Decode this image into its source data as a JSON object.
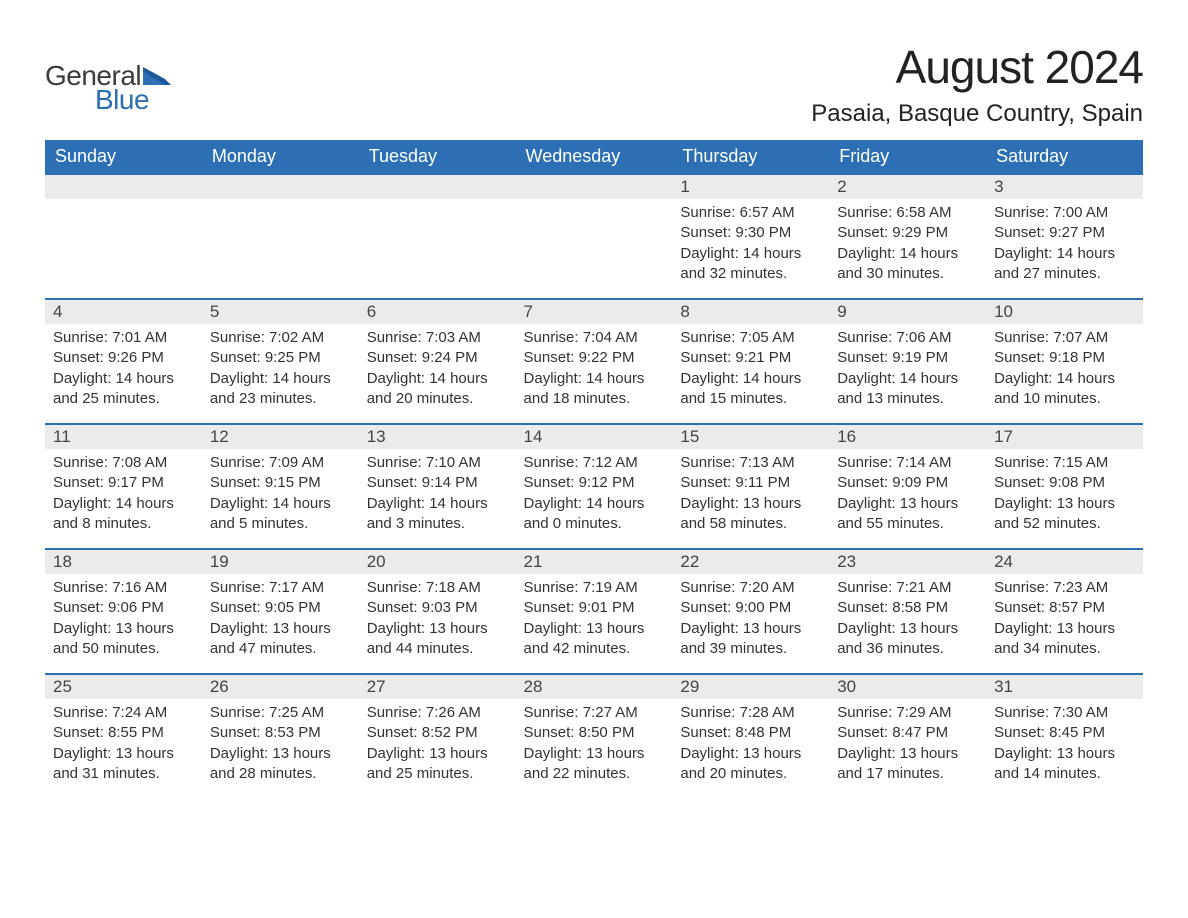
{
  "logo": {
    "general": "General",
    "blue": "Blue"
  },
  "title": "August 2024",
  "location": "Pasaia, Basque Country, Spain",
  "colors": {
    "header_bg": "#2d6fb5",
    "header_fg": "#ffffff",
    "accent": "#2d6fb5",
    "daynum_bg": "#ebebeb",
    "text": "#333333",
    "page_bg": "#ffffff"
  },
  "weekdays": [
    "Sunday",
    "Monday",
    "Tuesday",
    "Wednesday",
    "Thursday",
    "Friday",
    "Saturday"
  ],
  "weeks": [
    [
      null,
      null,
      null,
      null,
      {
        "n": "1",
        "sunrise": "6:57 AM",
        "sunset": "9:30 PM",
        "daylight": "14 hours and 32 minutes."
      },
      {
        "n": "2",
        "sunrise": "6:58 AM",
        "sunset": "9:29 PM",
        "daylight": "14 hours and 30 minutes."
      },
      {
        "n": "3",
        "sunrise": "7:00 AM",
        "sunset": "9:27 PM",
        "daylight": "14 hours and 27 minutes."
      }
    ],
    [
      {
        "n": "4",
        "sunrise": "7:01 AM",
        "sunset": "9:26 PM",
        "daylight": "14 hours and 25 minutes."
      },
      {
        "n": "5",
        "sunrise": "7:02 AM",
        "sunset": "9:25 PM",
        "daylight": "14 hours and 23 minutes."
      },
      {
        "n": "6",
        "sunrise": "7:03 AM",
        "sunset": "9:24 PM",
        "daylight": "14 hours and 20 minutes."
      },
      {
        "n": "7",
        "sunrise": "7:04 AM",
        "sunset": "9:22 PM",
        "daylight": "14 hours and 18 minutes."
      },
      {
        "n": "8",
        "sunrise": "7:05 AM",
        "sunset": "9:21 PM",
        "daylight": "14 hours and 15 minutes."
      },
      {
        "n": "9",
        "sunrise": "7:06 AM",
        "sunset": "9:19 PM",
        "daylight": "14 hours and 13 minutes."
      },
      {
        "n": "10",
        "sunrise": "7:07 AM",
        "sunset": "9:18 PM",
        "daylight": "14 hours and 10 minutes."
      }
    ],
    [
      {
        "n": "11",
        "sunrise": "7:08 AM",
        "sunset": "9:17 PM",
        "daylight": "14 hours and 8 minutes."
      },
      {
        "n": "12",
        "sunrise": "7:09 AM",
        "sunset": "9:15 PM",
        "daylight": "14 hours and 5 minutes."
      },
      {
        "n": "13",
        "sunrise": "7:10 AM",
        "sunset": "9:14 PM",
        "daylight": "14 hours and 3 minutes."
      },
      {
        "n": "14",
        "sunrise": "7:12 AM",
        "sunset": "9:12 PM",
        "daylight": "14 hours and 0 minutes."
      },
      {
        "n": "15",
        "sunrise": "7:13 AM",
        "sunset": "9:11 PM",
        "daylight": "13 hours and 58 minutes."
      },
      {
        "n": "16",
        "sunrise": "7:14 AM",
        "sunset": "9:09 PM",
        "daylight": "13 hours and 55 minutes."
      },
      {
        "n": "17",
        "sunrise": "7:15 AM",
        "sunset": "9:08 PM",
        "daylight": "13 hours and 52 minutes."
      }
    ],
    [
      {
        "n": "18",
        "sunrise": "7:16 AM",
        "sunset": "9:06 PM",
        "daylight": "13 hours and 50 minutes."
      },
      {
        "n": "19",
        "sunrise": "7:17 AM",
        "sunset": "9:05 PM",
        "daylight": "13 hours and 47 minutes."
      },
      {
        "n": "20",
        "sunrise": "7:18 AM",
        "sunset": "9:03 PM",
        "daylight": "13 hours and 44 minutes."
      },
      {
        "n": "21",
        "sunrise": "7:19 AM",
        "sunset": "9:01 PM",
        "daylight": "13 hours and 42 minutes."
      },
      {
        "n": "22",
        "sunrise": "7:20 AM",
        "sunset": "9:00 PM",
        "daylight": "13 hours and 39 minutes."
      },
      {
        "n": "23",
        "sunrise": "7:21 AM",
        "sunset": "8:58 PM",
        "daylight": "13 hours and 36 minutes."
      },
      {
        "n": "24",
        "sunrise": "7:23 AM",
        "sunset": "8:57 PM",
        "daylight": "13 hours and 34 minutes."
      }
    ],
    [
      {
        "n": "25",
        "sunrise": "7:24 AM",
        "sunset": "8:55 PM",
        "daylight": "13 hours and 31 minutes."
      },
      {
        "n": "26",
        "sunrise": "7:25 AM",
        "sunset": "8:53 PM",
        "daylight": "13 hours and 28 minutes."
      },
      {
        "n": "27",
        "sunrise": "7:26 AM",
        "sunset": "8:52 PM",
        "daylight": "13 hours and 25 minutes."
      },
      {
        "n": "28",
        "sunrise": "7:27 AM",
        "sunset": "8:50 PM",
        "daylight": "13 hours and 22 minutes."
      },
      {
        "n": "29",
        "sunrise": "7:28 AM",
        "sunset": "8:48 PM",
        "daylight": "13 hours and 20 minutes."
      },
      {
        "n": "30",
        "sunrise": "7:29 AM",
        "sunset": "8:47 PM",
        "daylight": "13 hours and 17 minutes."
      },
      {
        "n": "31",
        "sunrise": "7:30 AM",
        "sunset": "8:45 PM",
        "daylight": "13 hours and 14 minutes."
      }
    ]
  ],
  "labels": {
    "sunrise": "Sunrise: ",
    "sunset": "Sunset: ",
    "daylight": "Daylight: "
  }
}
